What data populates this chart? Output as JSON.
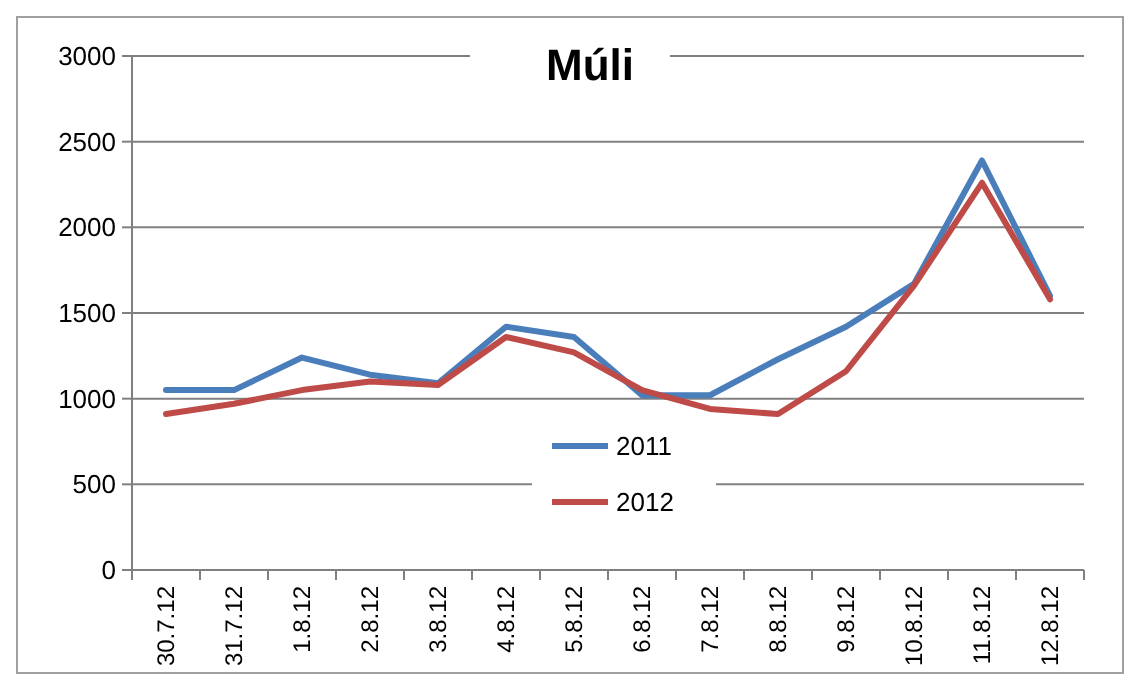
{
  "chart_data": {
    "type": "line",
    "title": "Múli",
    "categories": [
      "30.7.12",
      "31.7.12",
      "1.8.12",
      "2.8.12",
      "3.8.12",
      "4.8.12",
      "5.8.12",
      "6.8.12",
      "7.8.12",
      "8.8.12",
      "9.8.12",
      "10.8.12",
      "11.8.12",
      "12.8.12"
    ],
    "series": [
      {
        "name": "2011",
        "color": "#4a7ebb",
        "values": [
          1050,
          1050,
          1240,
          1140,
          1090,
          1420,
          1360,
          1020,
          1020,
          1230,
          1420,
          1670,
          2390,
          1600
        ]
      },
      {
        "name": "2012",
        "color": "#be4b48",
        "values": [
          910,
          970,
          1050,
          1100,
          1080,
          1360,
          1270,
          1050,
          940,
          910,
          1160,
          1660,
          2260,
          1580
        ]
      }
    ],
    "ylim": [
      0,
      3000
    ],
    "yticks": [
      0,
      500,
      1000,
      1500,
      2000,
      2500,
      3000
    ],
    "grid": "y",
    "legend": "bottom",
    "marker": "none",
    "line_style": "solid"
  }
}
